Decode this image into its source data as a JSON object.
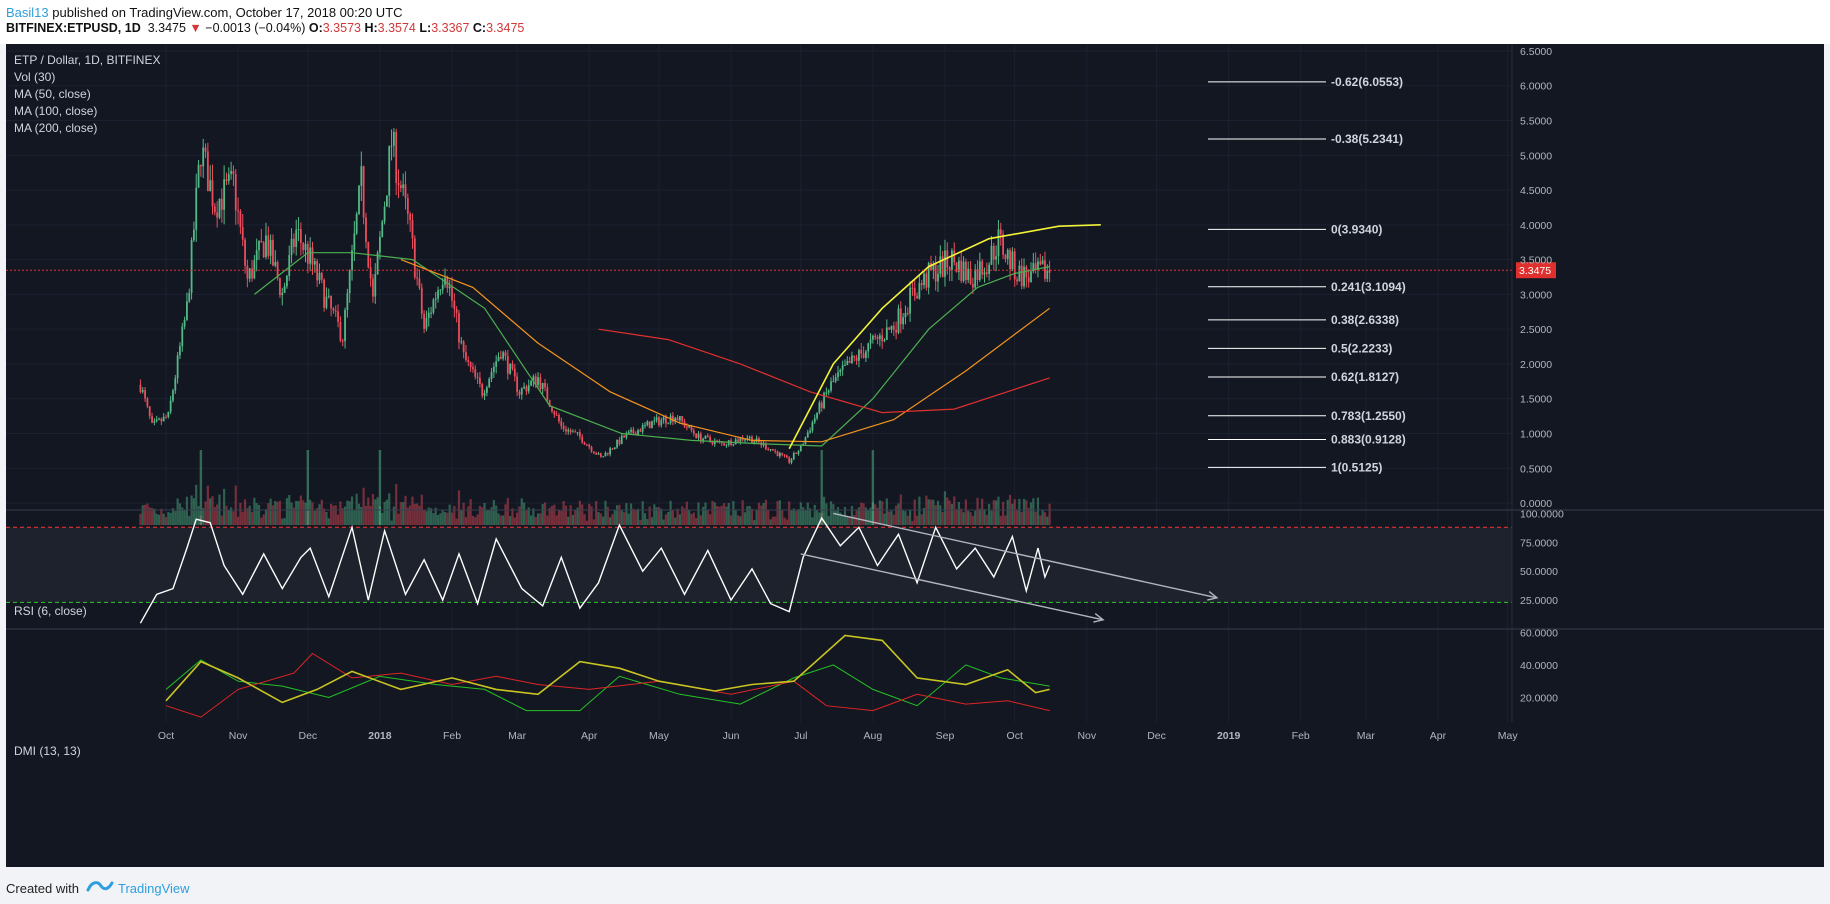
{
  "header": {
    "author": "Basil13",
    "published_text": "published on TradingView.com, October 17, 2018 00:20 UTC",
    "symbol": "BITFINEX:ETPUSD, 1D",
    "last": "3.3475",
    "change": "−0.0013 (−0.04%)",
    "o_label": "O:",
    "o_value": "3.3573",
    "h_label": "H:",
    "h_value": "3.3574",
    "l_label": "L:",
    "l_value": "3.3367",
    "c_label": "C:",
    "c_value": "3.3475"
  },
  "legend": {
    "title": "ETP / Dollar, 1D, BITFINEX",
    "items": [
      "Vol (30)",
      "MA (50, close)",
      "MA (100, close)",
      "MA (200, close)"
    ]
  },
  "footer": {
    "created_with": "Created with",
    "brand": "TradingView"
  },
  "colors": {
    "background": "#131722",
    "up": "#53b987",
    "down": "#eb4d5c",
    "ma50": "#4caf50",
    "ma100": "#f5941d",
    "ma200": "#e0302e",
    "arc": "#f4f437",
    "price_line": "#e0302e",
    "rsi": "#ffffff",
    "dmi_plus": "#25c225",
    "dmi_minus": "#e02424",
    "adx": "#c8c422"
  },
  "chart_data": [
    {
      "type": "candlestick",
      "title": "ETP / Dollar, 1D, BITFINEX",
      "ylim": [
        -0.1,
        6.6
      ],
      "y_ticks": [
        "6.5000",
        "6.0000",
        "5.5000",
        "5.0000",
        "4.5000",
        "4.0000",
        "3.5000",
        "3.0000",
        "2.5000",
        "2.0000",
        "1.5000",
        "1.0000",
        "0.5000",
        "0.0000"
      ],
      "x_ticks": [
        "Oct",
        "Nov",
        "Dec",
        "2018",
        "Feb",
        "Mar",
        "Apr",
        "May",
        "Jun",
        "Jul",
        "Aug",
        "Sep",
        "Oct",
        "Nov",
        "Dec",
        "2019",
        "Feb",
        "Mar",
        "Apr",
        "May"
      ],
      "last_price": "3.3475",
      "price_path": [
        [
          "2017-09-20",
          1.7
        ],
        [
          "2017-09-25",
          1.1
        ],
        [
          "2017-10-02",
          1.25
        ],
        [
          "2017-10-10",
          2.8
        ],
        [
          "2017-10-16",
          5.1
        ],
        [
          "2017-10-22",
          4.3
        ],
        [
          "2017-10-30",
          4.6
        ],
        [
          "2017-11-05",
          3.2
        ],
        [
          "2017-11-13",
          3.8
        ],
        [
          "2017-11-20",
          3.0
        ],
        [
          "2017-11-26",
          3.9
        ],
        [
          "2017-12-02",
          3.5
        ],
        [
          "2017-12-09",
          2.9
        ],
        [
          "2017-12-16",
          2.4
        ],
        [
          "2017-12-24",
          4.6
        ],
        [
          "2017-12-29",
          2.9
        ],
        [
          "2018-01-06",
          5.2
        ],
        [
          "2018-01-14",
          3.9
        ],
        [
          "2018-01-20",
          2.5
        ],
        [
          "2018-01-29",
          3.4
        ],
        [
          "2018-02-06",
          2.1
        ],
        [
          "2018-02-14",
          1.6
        ],
        [
          "2018-02-22",
          2.2
        ],
        [
          "2018-03-02",
          1.6
        ],
        [
          "2018-03-10",
          1.8
        ],
        [
          "2018-03-20",
          1.1
        ],
        [
          "2018-03-28",
          0.95
        ],
        [
          "2018-04-06",
          0.65
        ],
        [
          "2018-04-16",
          0.95
        ],
        [
          "2018-04-28",
          1.15
        ],
        [
          "2018-05-08",
          1.25
        ],
        [
          "2018-05-18",
          0.95
        ],
        [
          "2018-05-28",
          0.85
        ],
        [
          "2018-06-08",
          0.95
        ],
        [
          "2018-06-18",
          0.78
        ],
        [
          "2018-06-26",
          0.6
        ],
        [
          "2018-07-01",
          0.8
        ],
        [
          "2018-07-08",
          1.3
        ],
        [
          "2018-07-14",
          1.7
        ],
        [
          "2018-07-22",
          2.0
        ],
        [
          "2018-08-01",
          2.3
        ],
        [
          "2018-08-10",
          2.55
        ],
        [
          "2018-08-18",
          3.0
        ],
        [
          "2018-08-26",
          3.3
        ],
        [
          "2018-09-04",
          3.5
        ],
        [
          "2018-09-12",
          3.25
        ],
        [
          "2018-09-20",
          3.5
        ],
        [
          "2018-09-24",
          3.78
        ],
        [
          "2018-10-02",
          3.3
        ],
        [
          "2018-10-08",
          3.25
        ],
        [
          "2018-10-16",
          3.35
        ]
      ],
      "volume_spikes": [
        [
          "2017-10-16",
          0.0
        ],
        [
          "2017-12-01",
          0.0
        ],
        [
          "2018-01-01",
          0.0
        ],
        [
          "2018-07-10",
          0.0
        ],
        [
          "2018-08-01",
          0.0
        ]
      ],
      "moving_averages": [
        {
          "name": "MA (50, close)",
          "points": [
            [
              "2017-11-08",
              3.0
            ],
            [
              "2017-12-01",
              3.6
            ],
            [
              "2017-12-20",
              3.6
            ],
            [
              "2018-01-15",
              3.5
            ],
            [
              "2018-02-15",
              2.8
            ],
            [
              "2018-03-15",
              1.4
            ],
            [
              "2018-04-15",
              1.0
            ],
            [
              "2018-05-15",
              0.9
            ],
            [
              "2018-06-15",
              0.85
            ],
            [
              "2018-07-10",
              0.82
            ],
            [
              "2018-08-01",
              1.5
            ],
            [
              "2018-08-25",
              2.5
            ],
            [
              "2018-09-15",
              3.1
            ],
            [
              "2018-10-01",
              3.3
            ],
            [
              "2018-10-16",
              3.4
            ]
          ]
        },
        {
          "name": "MA (100, close)",
          "points": [
            [
              "2018-01-10",
              3.5
            ],
            [
              "2018-02-10",
              3.1
            ],
            [
              "2018-03-10",
              2.3
            ],
            [
              "2018-04-10",
              1.6
            ],
            [
              "2018-05-10",
              1.15
            ],
            [
              "2018-06-10",
              0.9
            ],
            [
              "2018-07-10",
              0.88
            ],
            [
              "2018-08-10",
              1.2
            ],
            [
              "2018-09-10",
              1.9
            ],
            [
              "2018-10-16",
              2.8
            ]
          ]
        },
        {
          "name": "MA (200, close)",
          "points": [
            [
              "2018-04-05",
              2.5
            ],
            [
              "2018-05-05",
              2.35
            ],
            [
              "2018-06-05",
              2.0
            ],
            [
              "2018-07-05",
              1.6
            ],
            [
              "2018-08-05",
              1.3
            ],
            [
              "2018-09-05",
              1.35
            ],
            [
              "2018-10-16",
              1.8
            ]
          ]
        }
      ],
      "arc": [
        [
          "2018-06-26",
          0.78
        ],
        [
          "2018-07-15",
          2.0
        ],
        [
          "2018-08-05",
          2.8
        ],
        [
          "2018-08-25",
          3.4
        ],
        [
          "2018-09-20",
          3.8
        ],
        [
          "2018-10-20",
          3.98
        ],
        [
          "2018-11-07",
          4.0
        ]
      ],
      "fib_levels": [
        {
          "label": "-0.62(6.0553)",
          "value": 6.0553
        },
        {
          "label": "-0.38(5.2341)",
          "value": 5.2341
        },
        {
          "label": "0(3.9340)",
          "value": 3.934
        },
        {
          "label": "0.241(3.1094)",
          "value": 3.1094
        },
        {
          "label": "0.38(2.6338)",
          "value": 2.6338
        },
        {
          "label": "0.5(2.2233)",
          "value": 2.2233
        },
        {
          "label": "0.62(1.8127)",
          "value": 1.8127
        },
        {
          "label": "0.783(1.2550)",
          "value": 1.255
        },
        {
          "label": "0.883(0.9128)",
          "value": 0.9128
        },
        {
          "label": "1(0.5125)",
          "value": 0.5125
        }
      ]
    },
    {
      "type": "line",
      "title": "RSI (6, close)",
      "ylim": [
        0,
        103
      ],
      "y_ticks": [
        "100.0000",
        "75.0000",
        "50.0000",
        "25.0000"
      ],
      "upper_band": 88,
      "lower_band": 23,
      "points": [
        [
          "2017-09-20",
          5
        ],
        [
          "2017-09-27",
          30
        ],
        [
          "2017-10-04",
          35
        ],
        [
          "2017-10-10",
          70
        ],
        [
          "2017-10-14",
          95
        ],
        [
          "2017-10-20",
          92
        ],
        [
          "2017-10-26",
          55
        ],
        [
          "2017-11-03",
          30
        ],
        [
          "2017-11-12",
          65
        ],
        [
          "2017-11-20",
          35
        ],
        [
          "2017-11-28",
          62
        ],
        [
          "2017-12-02",
          70
        ],
        [
          "2017-12-10",
          28
        ],
        [
          "2017-12-20",
          88
        ],
        [
          "2017-12-27",
          25
        ],
        [
          "2018-01-03",
          85
        ],
        [
          "2018-01-12",
          30
        ],
        [
          "2018-01-20",
          60
        ],
        [
          "2018-01-28",
          25
        ],
        [
          "2018-02-04",
          65
        ],
        [
          "2018-02-12",
          22
        ],
        [
          "2018-02-20",
          78
        ],
        [
          "2018-03-03",
          35
        ],
        [
          "2018-03-12",
          20
        ],
        [
          "2018-03-20",
          62
        ],
        [
          "2018-03-28",
          18
        ],
        [
          "2018-04-05",
          40
        ],
        [
          "2018-04-14",
          90
        ],
        [
          "2018-04-24",
          50
        ],
        [
          "2018-05-02",
          70
        ],
        [
          "2018-05-12",
          30
        ],
        [
          "2018-05-22",
          68
        ],
        [
          "2018-06-01",
          25
        ],
        [
          "2018-06-10",
          52
        ],
        [
          "2018-06-18",
          22
        ],
        [
          "2018-06-26",
          15
        ],
        [
          "2018-07-02",
          62
        ],
        [
          "2018-07-10",
          96
        ],
        [
          "2018-07-18",
          72
        ],
        [
          "2018-07-26",
          88
        ],
        [
          "2018-08-03",
          55
        ],
        [
          "2018-08-12",
          82
        ],
        [
          "2018-08-20",
          40
        ],
        [
          "2018-08-28",
          88
        ],
        [
          "2018-09-06",
          52
        ],
        [
          "2018-09-14",
          70
        ],
        [
          "2018-09-22",
          45
        ],
        [
          "2018-09-30",
          80
        ],
        [
          "2018-10-06",
          33
        ],
        [
          "2018-10-11",
          70
        ],
        [
          "2018-10-14",
          45
        ],
        [
          "2018-10-16",
          55
        ]
      ],
      "trendlines": [
        {
          "from": [
            "2018-07-15",
            100
          ],
          "to": [
            "2018-12-27",
            27
          ]
        },
        {
          "from": [
            "2018-07-01",
            65
          ],
          "to": [
            "2018-11-08",
            8
          ]
        }
      ]
    },
    {
      "type": "line",
      "title": "DMI (13, 13)",
      "ylim": [
        5,
        62
      ],
      "y_ticks": [
        "60.0000",
        "40.0000",
        "20.0000"
      ],
      "series": [
        {
          "points": [
            [
              "2017-10-01",
              25
            ],
            [
              "2017-10-16",
              43
            ],
            [
              "2017-11-01",
              30
            ],
            [
              "2017-11-20",
              27
            ],
            [
              "2017-12-10",
              20
            ],
            [
              "2018-01-01",
              33
            ],
            [
              "2018-01-25",
              28
            ],
            [
              "2018-02-15",
              25
            ],
            [
              "2018-03-05",
              12
            ],
            [
              "2018-03-28",
              12
            ],
            [
              "2018-04-14",
              33
            ],
            [
              "2018-05-10",
              22
            ],
            [
              "2018-06-05",
              16
            ],
            [
              "2018-06-28",
              32
            ],
            [
              "2018-07-15",
              40
            ],
            [
              "2018-08-01",
              25
            ],
            [
              "2018-08-20",
              15
            ],
            [
              "2018-09-10",
              40
            ],
            [
              "2018-09-25",
              32
            ],
            [
              "2018-10-16",
              27
            ]
          ]
        },
        {
          "points": [
            [
              "2017-10-01",
              15
            ],
            [
              "2017-10-16",
              8
            ],
            [
              "2017-11-01",
              25
            ],
            [
              "2017-11-25",
              35
            ],
            [
              "2017-12-03",
              47
            ],
            [
              "2017-12-20",
              32
            ],
            [
              "2018-01-10",
              35
            ],
            [
              "2018-02-01",
              28
            ],
            [
              "2018-02-20",
              33
            ],
            [
              "2018-03-10",
              28
            ],
            [
              "2018-04-01",
              25
            ],
            [
              "2018-05-01",
              30
            ],
            [
              "2018-06-01",
              22
            ],
            [
              "2018-06-28",
              30
            ],
            [
              "2018-07-12",
              15
            ],
            [
              "2018-08-01",
              12
            ],
            [
              "2018-08-20",
              22
            ],
            [
              "2018-09-10",
              16
            ],
            [
              "2018-09-28",
              18
            ],
            [
              "2018-10-16",
              12
            ]
          ]
        },
        {
          "points": [
            [
              "2017-10-01",
              18
            ],
            [
              "2017-10-16",
              42
            ],
            [
              "2017-11-01",
              32
            ],
            [
              "2017-11-20",
              17
            ],
            [
              "2017-12-05",
              25
            ],
            [
              "2017-12-20",
              36
            ],
            [
              "2018-01-10",
              25
            ],
            [
              "2018-02-01",
              32
            ],
            [
              "2018-02-20",
              25
            ],
            [
              "2018-03-10",
              22
            ],
            [
              "2018-03-28",
              42
            ],
            [
              "2018-04-14",
              38
            ],
            [
              "2018-05-01",
              30
            ],
            [
              "2018-05-25",
              24
            ],
            [
              "2018-06-10",
              28
            ],
            [
              "2018-06-28",
              30
            ],
            [
              "2018-07-20",
              58
            ],
            [
              "2018-08-05",
              55
            ],
            [
              "2018-08-20",
              32
            ],
            [
              "2018-09-10",
              28
            ],
            [
              "2018-09-28",
              37
            ],
            [
              "2018-10-10",
              23
            ],
            [
              "2018-10-16",
              25
            ]
          ]
        }
      ]
    }
  ]
}
